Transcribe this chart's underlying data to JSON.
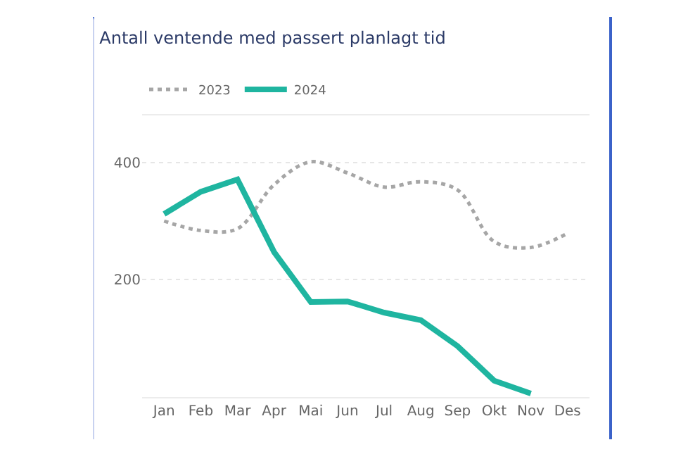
{
  "chart_data": {
    "type": "line",
    "title": "Antall ventende med passert planlagt tid",
    "categories": [
      "Jan",
      "Feb",
      "Mar",
      "Apr",
      "Mai",
      "Jun",
      "Jul",
      "Aug",
      "Sep",
      "Okt",
      "Nov",
      "Des"
    ],
    "series": [
      {
        "name": "2023",
        "color": "#a6a6a6",
        "line_style": "dotted",
        "values": [
          300,
          284,
          287,
          362,
          401,
          382,
          358,
          367,
          353,
          265,
          255,
          279
        ]
      },
      {
        "name": "2024",
        "color": "#1fb5a0",
        "line_style": "solid",
        "values": [
          312,
          350,
          371,
          247,
          162,
          163,
          144,
          131,
          87,
          28,
          6,
          null
        ]
      }
    ],
    "ylim": [
      0,
      480
    ],
    "yticks": [
      {
        "value": 0,
        "label": null
      },
      200,
      400
    ],
    "grid": "y",
    "legend": "top left",
    "marker": "none"
  }
}
